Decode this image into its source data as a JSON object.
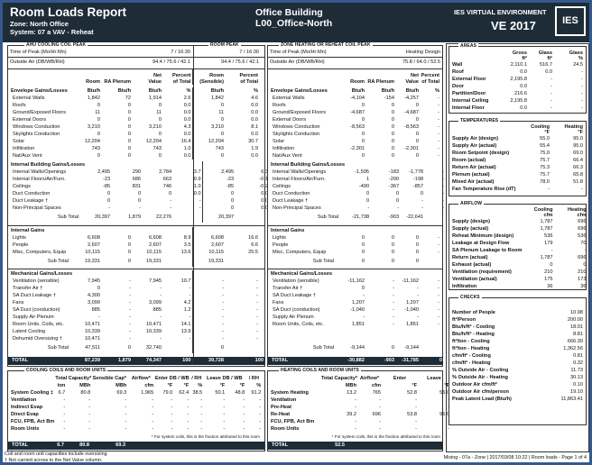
{
  "header": {
    "title": "Room Loads Report",
    "zone": "Zone: North Office",
    "system": "System: 07 a VAV - Reheat",
    "building": "Office Building",
    "room": "L00_Office-North",
    "brand": "IES VIRTUAL ENVIRONMENT",
    "version": "VE 2017",
    "logo": "IES"
  },
  "cool": {
    "legend": "AHU COOLING COIL PEAK",
    "room_peak_legend": "ROOM PEAK",
    "time_label": "Time of Peak (Mo/Hr:Mn)",
    "time_value": "7 / 16:30",
    "room_time_value": "7 / 16:30",
    "oa_label": "Outside Air (DB/WB/RH)",
    "oa_value": "94.4 / 75.6 / 42.1",
    "room_oa_value": "94.4 / 75.6 / 42.1",
    "header_rows": [
      [
        "",
        "Room",
        "RA Plenum",
        "Net\nValue",
        "Percent\nof Total",
        "Room\n(Sensible)",
        "Percent\nof Total"
      ]
    ],
    "sections": [
      {
        "title_row": [
          [
            "Envelope Gains/Losses",
            "Btu/h",
            "Btu/h",
            "Btu/h",
            "%",
            "Btu/h",
            "%"
          ]
        ],
        "rows": [
          [
            "External Walls",
            "1,842",
            "72",
            "1,914",
            "2.6",
            "1,842",
            "4.6"
          ],
          [
            "Roofs",
            "0",
            "0",
            "0",
            "0.0",
            "0",
            "0.0"
          ],
          [
            "Ground/Exposed Floors",
            "11",
            "0",
            "11",
            "0.0",
            "11",
            "0.0"
          ],
          [
            "External Doors",
            "0",
            "0",
            "0",
            "0.0",
            "0",
            "0.0"
          ],
          [
            "Windows Conduction",
            "3,210",
            "0",
            "3,210",
            "4.3",
            "3,210",
            "8.1"
          ],
          [
            "Skylights Conduction",
            "0",
            "0",
            "0",
            "0.0",
            "0",
            "0.0"
          ],
          [
            "Solar",
            "12,204",
            "0",
            "12,204",
            "16.4",
            "12,204",
            "30.7"
          ],
          [
            "Infiltration",
            "743",
            "0",
            "743",
            "1.0",
            "743",
            "1.9"
          ],
          [
            "Nat/Aux Vent",
            "0",
            "0",
            "0",
            "0.0",
            "0",
            "0.0"
          ]
        ],
        "subtotal": []
      },
      {
        "title_row": [
          [
            "Internal Building Gains/Losses",
            "",
            "",
            "",
            "",
            "",
            ""
          ]
        ],
        "rows": [
          [
            "Internal Walls/Openings",
            "2,495",
            "290",
            "2,784",
            "3.7",
            "2,495",
            "6.3"
          ],
          [
            "Internal Floors/Air/Furn.",
            "-23",
            "686",
            "663",
            "0.9",
            "-23",
            "-0.1"
          ],
          [
            "Ceilings",
            "-85",
            "831",
            "746",
            "1.0",
            "-85",
            "-0.2"
          ],
          [
            "Duct Conduction",
            "0",
            "0",
            "0",
            "0.0",
            "0",
            "0.0"
          ],
          [
            "Duct Leakage †",
            "0",
            "0",
            "-",
            "-",
            "0",
            "0.0"
          ],
          [
            "Non-Principal Spaces",
            "-",
            "-",
            "-",
            "-",
            "0",
            "0.0"
          ]
        ],
        "subtotal": [
          [
            "Sub Total",
            "20,397",
            "1,879",
            "22,276",
            "",
            "20,397",
            ""
          ]
        ]
      },
      {
        "title_row": [
          [
            "Internal Gains",
            "",
            "",
            "",
            "",
            "",
            ""
          ]
        ],
        "rows": [
          [
            "Lights",
            "6,608",
            "0",
            "6,608",
            "8.9",
            "6,608",
            "16.6"
          ],
          [
            "People",
            "2,607",
            "0",
            "2,607",
            "3.5",
            "2,607",
            "6.6"
          ],
          [
            "Misc, Computers, Equip",
            "10,115",
            "0",
            "10,115",
            "13.6",
            "10,115",
            "25.5"
          ]
        ],
        "subtotal": [
          [
            "Sub Total",
            "19,331",
            "0",
            "19,331",
            "",
            "19,331",
            ""
          ]
        ]
      },
      {
        "title_row": [
          [
            "Mechanical Gains/Losses",
            "",
            "",
            "",
            "",
            "",
            ""
          ]
        ],
        "rows": [
          [
            "Ventilation (sensible)",
            "7,945",
            "-",
            "7,945",
            "10.7",
            "-",
            "-"
          ],
          [
            "Transfer Air †",
            "0",
            "-",
            "-",
            "-",
            "-",
            "-"
          ],
          [
            "SA Duct Leakage †",
            "4,300",
            "-",
            "-",
            "-",
            "-",
            "-"
          ],
          [
            "Fans",
            "3,099",
            "-",
            "3,099",
            "4.2",
            "-",
            "-"
          ],
          [
            "SA Duct (conduction)",
            "885",
            "-",
            "885",
            "1.2",
            "-",
            "-"
          ],
          [
            "Supply Air Plenum",
            "-",
            "-",
            "-",
            "-",
            "-",
            "-"
          ],
          [
            "Room Units, Coils, etc.",
            "10,471",
            "-",
            "10,471",
            "14.1",
            "-",
            "-"
          ],
          [
            "Latent Cooling",
            "10,339",
            "-",
            "10,339",
            "13.9",
            "-",
            "-"
          ],
          [
            "Dehumid Oversizing †",
            "10,471",
            "-",
            "-",
            "-",
            "-",
            "-"
          ]
        ],
        "subtotal": [
          [
            "Sub Total",
            "47,511",
            "0",
            "32,740",
            "",
            "0",
            ""
          ]
        ]
      }
    ],
    "total": [
      [
        "TOTAL",
        "87,239",
        "1,879",
        "74,347",
        "100",
        "39,728",
        "100"
      ]
    ]
  },
  "heat": {
    "legend": "ZONE HEATING OR REHEAT COIL PEAK",
    "time_label": "Time of Peak (Mo/Hr:Mn)",
    "time_value": "Heating Design",
    "oa_label": "Outside Air (DB/WB/RH)",
    "oa_value": "75.8 / 64.0 / 52.5",
    "header_rows": [
      [
        "",
        "Room",
        "RA Plenum",
        "Net\nValue",
        "Percent\nof Total"
      ]
    ],
    "sections": [
      {
        "title_row": [
          [
            "Envelope Gains/Losses",
            "Btu/h",
            "Btu/h",
            "Btu/h",
            "%"
          ]
        ],
        "rows": [
          [
            "External Walls",
            "-4,104",
            "-154",
            "-4,257",
            "-"
          ],
          [
            "Roofs",
            "0",
            "0",
            "0",
            "-"
          ],
          [
            "Ground/Exposed Floors",
            "-4,687",
            "0",
            "-4,687",
            "-"
          ],
          [
            "External Doors",
            "0",
            "0",
            "0",
            "-"
          ],
          [
            "Windows Conduction",
            "-8,563",
            "0",
            "-8,563",
            "-"
          ],
          [
            "Skylights Conduction",
            "0",
            "0",
            "0",
            "-"
          ],
          [
            "Solar",
            "0",
            "0",
            "0",
            "-"
          ],
          [
            "Infiltration",
            "-2,301",
            "0",
            "-2,301",
            "-"
          ],
          [
            "Nat/Aux Vent",
            "0",
            "0",
            "0",
            "-"
          ]
        ],
        "subtotal": []
      },
      {
        "title_row": [
          [
            "Internal Building Gains/Losses",
            "",
            "",
            "",
            ""
          ]
        ],
        "rows": [
          [
            "Internal Walls/Openings",
            "-1,595",
            "-183",
            "-1,778",
            "-"
          ],
          [
            "Internal Floors/Air/Furn.",
            "1",
            "-200",
            "-198",
            "-"
          ],
          [
            "Ceilings",
            "-490",
            "-367",
            "-857",
            "-"
          ],
          [
            "Duct Conduction",
            "0",
            "0",
            "0",
            "-"
          ],
          [
            "Duct Leakage †",
            "0",
            "0",
            "-",
            "-"
          ],
          [
            "Non-Principal Spaces",
            "-",
            "-",
            "-",
            "-"
          ]
        ],
        "subtotal": [
          [
            "Sub Total",
            "-21,738",
            "-903",
            "-22,641",
            ""
          ]
        ]
      },
      {
        "title_row": [
          [
            "Internal Gains",
            "",
            "",
            "",
            ""
          ]
        ],
        "rows": [
          [
            "Lights",
            "0",
            "0",
            "0",
            "-"
          ],
          [
            "People",
            "0",
            "0",
            "0",
            "-"
          ],
          [
            "Misc, Computers, Equip",
            "0",
            "0",
            "0",
            "-"
          ]
        ],
        "subtotal": [
          [
            "Sub Total",
            "0",
            "0",
            "0",
            ""
          ]
        ]
      },
      {
        "title_row": [
          [
            "Mechanical Gains/Losses",
            "",
            "",
            "",
            ""
          ]
        ],
        "rows": [
          [
            "Ventilation (sensible)",
            "-11,162",
            "-",
            "-11,162",
            "-"
          ],
          [
            "Transfer Air †",
            "0",
            "-",
            "-",
            "-"
          ],
          [
            "SA Duct Leakage †",
            "-",
            "-",
            "-",
            "-"
          ],
          [
            "Fans",
            "1,207",
            "-",
            "1,207",
            "-"
          ],
          [
            "SA Duct (conduction)",
            "-1,040",
            "-",
            "-1,040",
            "-"
          ],
          [
            "Supply Air Plenum",
            "-",
            "-",
            "-",
            "-"
          ],
          [
            "Room Units, Coils, etc.",
            "1,851",
            "-",
            "1,851",
            "-"
          ]
        ],
        "subtotal": [
          [
            "Sub Total",
            "-9,144",
            "0",
            "-9,144",
            ""
          ]
        ]
      }
    ],
    "total": [
      [
        "TOTAL",
        "-30,882",
        "-903",
        "-31,785",
        "0"
      ]
    ]
  },
  "cool_coils": {
    "legend": "COOLING COILS AND ROOM UNITS",
    "head": [
      [
        "",
        "Total Capacity*",
        "",
        "Sensible Cap*",
        "Airflow*",
        "Enter DB / WB",
        "",
        "/ RH",
        "Leave DB / WB",
        "",
        "/ RH"
      ]
    ],
    "units": [
      [
        "",
        "ton",
        "MBh",
        "MBh",
        "cfm",
        "°F",
        "°F",
        "%",
        "°F",
        "°F",
        "%"
      ]
    ],
    "rows": [
      [
        "System Cooling ‡",
        "6.7",
        "80.8",
        "69.3",
        "1,965",
        "79.0",
        "62.4",
        "38.5",
        "50.1",
        "48.8",
        "91.2"
      ],
      [
        "Ventilation",
        "-",
        "-",
        "-",
        "-",
        "-",
        "-",
        "-",
        "-",
        "-",
        "-"
      ],
      [
        "Indirect Evap",
        "-",
        "-",
        "-",
        "-",
        "-",
        "-",
        "-",
        "-",
        "-",
        "-"
      ],
      [
        "Direct Evap",
        "-",
        "-",
        "-",
        "-",
        "-",
        "-",
        "-",
        "-",
        "-",
        "-"
      ],
      [
        "FCU, FPB, Act Bm",
        "-",
        "-",
        "-",
        "-",
        "-",
        "-",
        "-",
        "-",
        "-",
        "-"
      ],
      [
        "Room Units",
        "-",
        "-",
        "-",
        "-",
        "-",
        "-",
        "-",
        "-",
        "-",
        "-"
      ]
    ],
    "note": "* For system coils, this is the fraction attributed to this room",
    "total": [
      [
        "TOTAL",
        "6.7",
        "80.8",
        "69.3",
        "",
        "",
        "",
        "",
        "",
        "",
        ""
      ]
    ]
  },
  "heat_coils": {
    "legend": "HEATING COILS AND ROOM UNITS",
    "head": [
      [
        "",
        "Total Capacity*",
        "Airflow*",
        "Enter",
        "Leave"
      ]
    ],
    "units": [
      [
        "",
        "MBh",
        "cfm",
        "°F",
        "°F"
      ]
    ],
    "rows": [
      [
        "System Heating",
        "13.2",
        "765",
        "52.8",
        "55.0"
      ],
      [
        "Ventilation",
        "-",
        "-",
        "-",
        "-"
      ],
      [
        "Pre-Heat",
        "-",
        "-",
        "-",
        "-"
      ],
      [
        "Re-Heat",
        "39.2",
        "696",
        "53.8",
        "95.0"
      ],
      [
        "FCU, FPB, Act Bm",
        "-",
        "-",
        "-",
        "-"
      ],
      [
        "Room Units",
        "-",
        "-",
        "-",
        "-"
      ]
    ],
    "note": "* For system coils, this is the fraction attributed to this room",
    "total": [
      [
        "TOTAL",
        "52.5",
        "",
        "",
        ""
      ]
    ]
  },
  "areas": {
    "legend": "AREAS",
    "head": [
      [
        "",
        "Gross\nft²",
        "Glass\nft²",
        "Glass\n%"
      ]
    ],
    "rows": [
      [
        "Wall",
        "2,110.1",
        "516.7",
        "24.5"
      ],
      [
        "Roof",
        "0.0",
        "0.0",
        "-"
      ],
      [
        "External Floor",
        "2,195.8",
        "-",
        "-"
      ],
      [
        "Door",
        "0.0",
        "-",
        "-"
      ],
      [
        "Partition/Door",
        "216.6",
        "-",
        "-"
      ],
      [
        "Internal Ceiling",
        "2,195.8",
        "-",
        "-"
      ],
      [
        "Internal Floor",
        "0.0",
        "-",
        "-"
      ]
    ]
  },
  "temps": {
    "legend": "TEMPERATURES",
    "head": [
      [
        "",
        "Cooling\n°F",
        "Heating\n°F"
      ]
    ],
    "rows": [
      [
        "Supply Air (design)",
        "55.0",
        "95.0"
      ],
      [
        "Supply Air (actual)",
        "55.4",
        "95.0"
      ],
      [
        "Room Setpoint (design)",
        "75.0",
        "69.0"
      ],
      [
        "Room (actual)",
        "75.7",
        "66.4"
      ],
      [
        "Return Air (actual)",
        "75.3",
        "66.3"
      ],
      [
        "Plenum (actual)",
        "75.7",
        "65.8"
      ],
      [
        "Mixed Air (actual)",
        "78.0",
        "51.8"
      ],
      [
        "Fan Temperature Rise (dT)",
        "-",
        "-"
      ]
    ]
  },
  "airflow": {
    "legend": "AIRFLOW",
    "head": [
      [
        "",
        "Cooling\ncfm",
        "Heating\ncfm"
      ]
    ],
    "rows": [
      [
        "Supply (design)",
        "1,787",
        "696"
      ],
      [
        "Supply (actual)",
        "1,787",
        "696"
      ],
      [
        "Reheat Minimum (design)",
        "536",
        "536"
      ],
      [
        "Leakage at Design Flow",
        "179",
        "70"
      ],
      [
        "SA Plenum Leakage to Room",
        "-",
        "-"
      ],
      [
        "Return (actual)",
        "1,787",
        "696"
      ],
      [
        "Exhaust (actual)",
        "0",
        "0"
      ],
      [
        "Ventilation (requirement)",
        "210",
        "210"
      ],
      [
        "Ventilation (actual)",
        "175",
        "173"
      ],
      [
        "Infiltration",
        "36",
        "36"
      ]
    ]
  },
  "checks": {
    "legend": "CHECKS",
    "rows": [
      [
        "Number of People",
        "10.98"
      ],
      [
        "ft²/Person",
        "200.00"
      ],
      [
        "Btu/h/ft² - Cooling",
        "18.01"
      ],
      [
        "Btu/h/ft² - Heating",
        "8.81"
      ],
      [
        "ft²/ton - Cooling",
        "666.39"
      ],
      [
        "ft²/ton - Heating",
        "1,362.56"
      ],
      [
        "cfm/ft² - Cooling",
        "0.81"
      ],
      [
        "cfm/ft² - Heating",
        "0.32"
      ],
      [
        "% Outside Air - Cooling",
        "11.73"
      ],
      [
        "% Outside Air - Heating",
        "30.13"
      ],
      [
        "Outdoor Air cfm/ft²",
        "0.10"
      ],
      [
        "Outdoor Air cfm/person",
        "19.10"
      ],
      [
        "Peak Latent Load (Btu/h)",
        "11,863.41"
      ]
    ]
  },
  "footer": {
    "note1": "Coil and room unit capacities include oversizing",
    "note2": "† Not carried across to the Net Value column.",
    "info": "Mixing - 07a - Zone | 2017/03/08 10:22 | Room loads - Page 1 of 4"
  }
}
